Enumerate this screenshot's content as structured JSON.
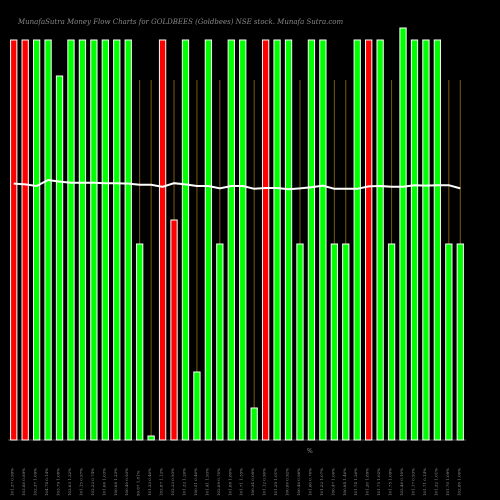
{
  "header": {
    "title": "MunafaSutra Money Flow Charts for GOLDBEES (Goldbees) NSE stock. Munafa Sutra.com",
    "axis_mark": "%"
  },
  "colors": {
    "background": "#000000",
    "up": "#00ff00",
    "down": "#ff0000",
    "price": "#ffffff",
    "grid": "#7a5a10",
    "outline": "#ffffff"
  },
  "chart_data": {
    "type": "bar",
    "title": "MunafaSutra Money Flow Charts for GOLDBEES (Goldbees) NSE stock. Munafa Sutra.com",
    "categories": [
      "101.37 0.99%",
      "103.88 0.89%",
      "102.37 1.09%",
      "104.74 0.14%",
      "103.79 1.08%",
      "102.63 1.22%",
      "101.15 0.97%",
      "102.22 0.74%",
      "101.66 1.03%",
      "100.88 1.23%",
      "100.40 0.93%",
      "99.67 1.81%",
      "101.33 0.40%",
      "102.87 1.12%",
      "102.33 0.93%",
      "101.32 1.26%",
      "100.51 0.40%",
      "101.41 1.93%",
      "102.09 0.70%",
      "101.88 1.80%",
      "101.71 1.55%",
      "100.34 0.08%",
      "101.12 0.90%",
      "101.29 1.01%",
      "100.80 0.92%",
      "100.46 0.98%",
      "101.60 0.70%",
      "101.22 1.07%",
      "100.47 1.06%",
      "100.84 1.46%",
      "101.74 1.26%",
      "101.20 1.89%",
      "101.75 1.02%",
      "101.75 1.09%",
      "102.46 0.10%",
      "101.17 0.93%",
      "101.71 0.14%",
      "101.32 1.01%",
      "101.70 1.09%",
      "102.80 1.00%"
    ],
    "series": [
      {
        "values": [
          100,
          100,
          100,
          100,
          91,
          100,
          100,
          100,
          100,
          100,
          100,
          49,
          1,
          100,
          55,
          100,
          17,
          100,
          49,
          100,
          100,
          8,
          100,
          100,
          100,
          49,
          100,
          100,
          49,
          49,
          100,
          100,
          100,
          49,
          103,
          100,
          100,
          100,
          49,
          49
        ]
      },
      {
        "values": [
          64.1,
          63.9,
          63.5,
          65.0,
          64.6,
          64.3,
          64.3,
          64.3,
          64.2,
          64.2,
          64.1,
          63.8,
          63.8,
          63.3,
          64.2,
          63.9,
          63.5,
          63.5,
          62.9,
          63.5,
          63.5,
          62.8,
          63.0,
          63.0,
          62.7,
          62.9,
          63.2,
          63.6,
          62.8,
          62.8,
          62.8,
          63.4,
          63.5,
          63.3,
          63.3,
          63.7,
          63.6,
          63.7,
          63.7,
          62.9
        ]
      }
    ],
    "direction": [
      "down",
      "down",
      "up",
      "up",
      "up",
      "up",
      "up",
      "up",
      "up",
      "up",
      "up",
      "up",
      "up",
      "down",
      "down",
      "up",
      "up",
      "up",
      "up",
      "up",
      "up",
      "up",
      "down",
      "up",
      "up",
      "up",
      "up",
      "up",
      "up",
      "up",
      "up",
      "down",
      "up",
      "up",
      "up",
      "up",
      "up",
      "up",
      "up",
      "up"
    ],
    "ylim": [
      0,
      110
    ],
    "price_ylim": [
      0,
      110
    ],
    "grid": true,
    "legend": "none"
  }
}
